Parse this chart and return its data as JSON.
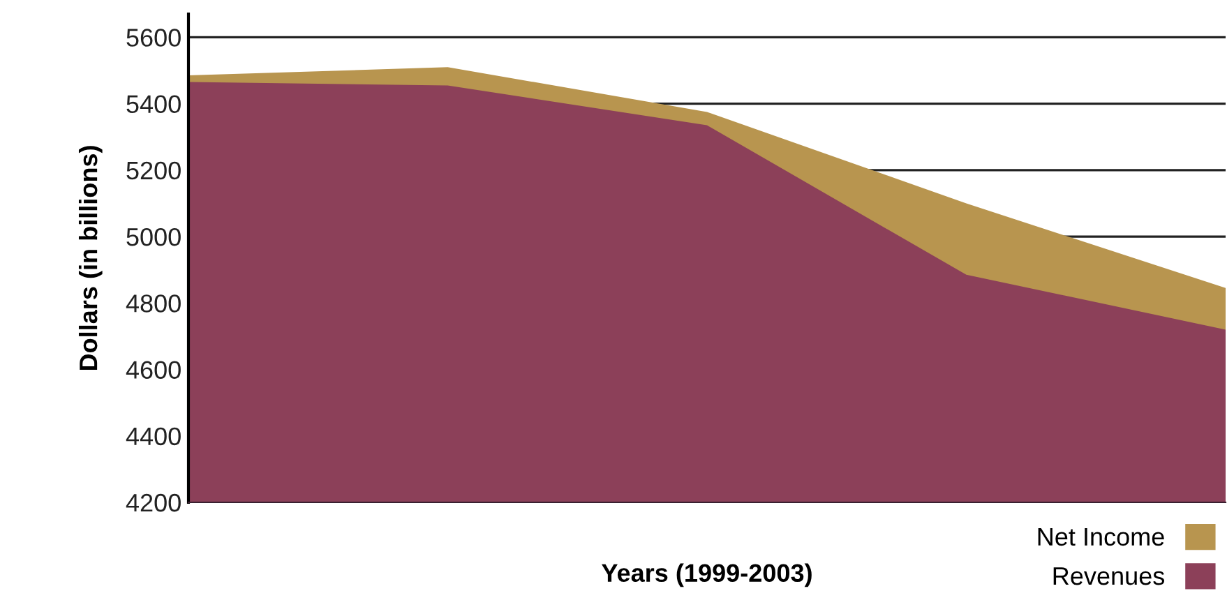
{
  "chart_data": {
    "type": "area",
    "xlabel": "Years (1999-2003)",
    "ylabel": "Dollars (in billions)",
    "categories": [
      null,
      null,
      null,
      null,
      null
    ],
    "series": [
      {
        "name": "Net Income",
        "color": "#b8954f",
        "values": [
          5485,
          5510,
          5375,
          5100,
          4845
        ]
      },
      {
        "name": "Revenues",
        "color": "#8c4059",
        "values": [
          5465,
          5455,
          5335,
          4885,
          4720
        ]
      }
    ],
    "ylim": [
      4200,
      5670
    ],
    "yticks": [
      4200,
      4400,
      4600,
      4800,
      5000,
      5200,
      5400,
      5600
    ],
    "grid": "y",
    "legend": "bottom right"
  }
}
